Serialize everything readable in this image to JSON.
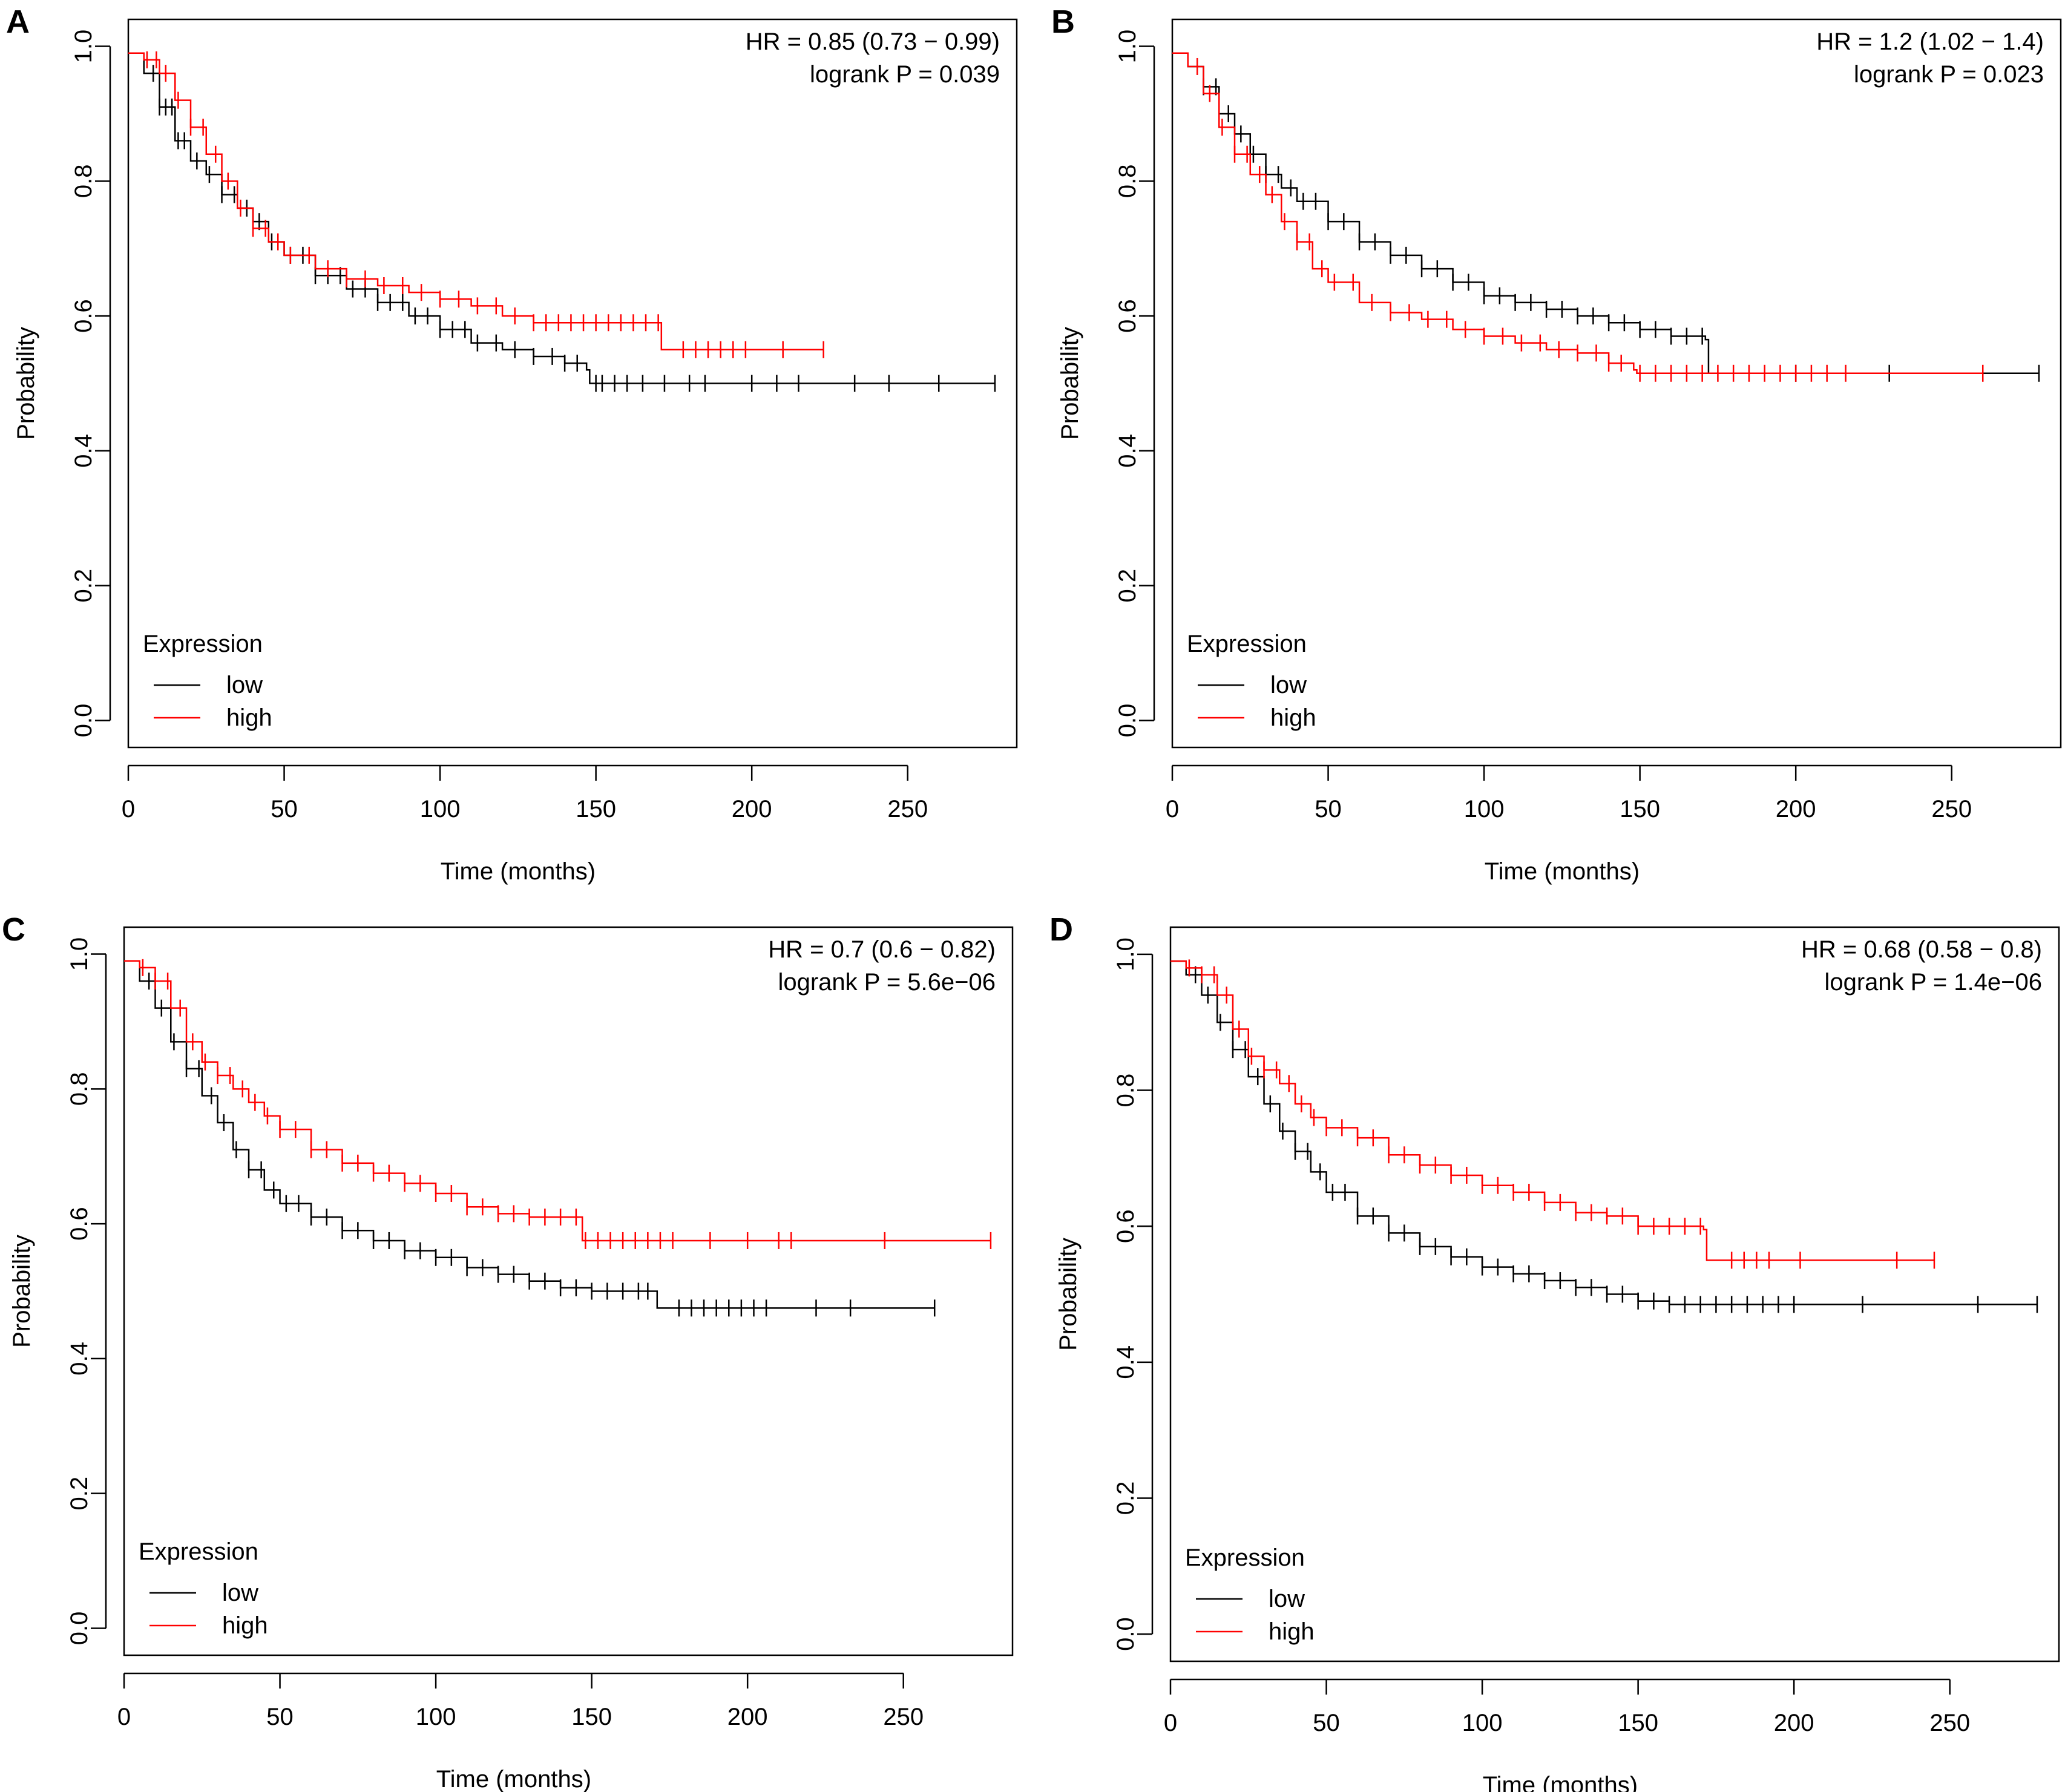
{
  "figure": {
    "colors": {
      "low": "#000000",
      "high": "#ff0000",
      "axis": "#000000"
    }
  },
  "chart_data": [
    {
      "panel": "A",
      "type": "line",
      "subtype": "kaplan-meier",
      "xlabel": "Time (months)",
      "ylabel": "Probability",
      "xlim": [
        0,
        285
      ],
      "ylim": [
        -0.04,
        1.04
      ],
      "xticks": [
        "0",
        "50",
        "100",
        "150",
        "200",
        "250"
      ],
      "yticks": [
        "0.0",
        "0.2",
        "0.4",
        "0.6",
        "0.8",
        "1.0"
      ],
      "annotation": [
        "HR = 0.85 (0.73 − 0.99)",
        "logrank P = 0.039"
      ],
      "legend": {
        "title": "Expression",
        "position": "bottom-left",
        "entries": [
          "low",
          "high"
        ]
      },
      "series": [
        {
          "name": "low",
          "color": "#000000",
          "x": [
            0,
            5,
            10,
            15,
            20,
            25,
            30,
            35,
            40,
            45,
            50,
            60,
            70,
            80,
            90,
            100,
            110,
            120,
            130,
            140,
            147,
            148,
            278
          ],
          "y": [
            0.99,
            0.96,
            0.91,
            0.86,
            0.83,
            0.81,
            0.78,
            0.76,
            0.74,
            0.71,
            0.69,
            0.66,
            0.64,
            0.62,
            0.6,
            0.58,
            0.56,
            0.55,
            0.54,
            0.53,
            0.52,
            0.5,
            0.5
          ],
          "censor": [
            8,
            10,
            12,
            14,
            16,
            18,
            22,
            26,
            30,
            34,
            38,
            42,
            46,
            52,
            56,
            60,
            64,
            68,
            72,
            76,
            80,
            84,
            88,
            92,
            96,
            100,
            104,
            108,
            112,
            118,
            124,
            130,
            136,
            140,
            144,
            150,
            152,
            156,
            160,
            165,
            172,
            180,
            185,
            200,
            208,
            215,
            233,
            244,
            260,
            278
          ]
        },
        {
          "name": "high",
          "color": "#ff0000",
          "x": [
            0,
            5,
            10,
            15,
            20,
            25,
            30,
            35,
            40,
            45,
            50,
            60,
            70,
            80,
            90,
            100,
            110,
            120,
            130,
            150,
            170,
            171,
            223
          ],
          "y": [
            0.99,
            0.98,
            0.96,
            0.92,
            0.88,
            0.84,
            0.8,
            0.76,
            0.73,
            0.71,
            0.69,
            0.67,
            0.655,
            0.645,
            0.635,
            0.625,
            0.615,
            0.6,
            0.59,
            0.59,
            0.59,
            0.55,
            0.55
          ],
          "censor": [
            6,
            9,
            12,
            16,
            20,
            24,
            28,
            32,
            36,
            40,
            44,
            48,
            52,
            58,
            64,
            70,
            76,
            82,
            88,
            94,
            100,
            106,
            112,
            118,
            124,
            130,
            134,
            138,
            142,
            146,
            150,
            154,
            158,
            162,
            166,
            170,
            178,
            182,
            186,
            190,
            194,
            198,
            210,
            223
          ]
        }
      ]
    },
    {
      "panel": "B",
      "type": "line",
      "subtype": "kaplan-meier",
      "xlabel": "Time (months)",
      "ylabel": "Probability",
      "xlim": [
        0,
        285
      ],
      "ylim": [
        -0.04,
        1.04
      ],
      "xticks": [
        "0",
        "50",
        "100",
        "150",
        "200",
        "250"
      ],
      "yticks": [
        "0.0",
        "0.2",
        "0.4",
        "0.6",
        "0.8",
        "1.0"
      ],
      "annotation": [
        "HR = 1.2 (1.02 − 1.4)",
        "logrank P = 0.023"
      ],
      "legend": {
        "title": "Expression",
        "position": "bottom-left",
        "entries": [
          "low",
          "high"
        ]
      },
      "series": [
        {
          "name": "low",
          "color": "#000000",
          "x": [
            0,
            5,
            10,
            15,
            20,
            25,
            30,
            35,
            40,
            50,
            60,
            70,
            80,
            90,
            100,
            110,
            120,
            130,
            140,
            150,
            160,
            171,
            172,
            278
          ],
          "y": [
            0.99,
            0.97,
            0.94,
            0.9,
            0.87,
            0.84,
            0.81,
            0.79,
            0.77,
            0.74,
            0.71,
            0.69,
            0.67,
            0.65,
            0.63,
            0.62,
            0.61,
            0.6,
            0.59,
            0.58,
            0.57,
            0.565,
            0.515,
            0.515
          ],
          "censor": [
            10,
            14,
            18,
            22,
            26,
            30,
            34,
            38,
            42,
            46,
            50,
            55,
            60,
            65,
            70,
            75,
            80,
            85,
            90,
            95,
            100,
            105,
            110,
            115,
            120,
            125,
            130,
            135,
            140,
            145,
            150,
            155,
            160,
            165,
            170,
            200,
            230,
            278
          ]
        },
        {
          "name": "high",
          "color": "#ff0000",
          "x": [
            0,
            5,
            10,
            15,
            20,
            25,
            30,
            35,
            40,
            45,
            50,
            60,
            70,
            80,
            90,
            100,
            110,
            120,
            130,
            140,
            148,
            149,
            260
          ],
          "y": [
            0.99,
            0.97,
            0.93,
            0.88,
            0.84,
            0.81,
            0.78,
            0.74,
            0.71,
            0.67,
            0.65,
            0.62,
            0.605,
            0.595,
            0.58,
            0.57,
            0.56,
            0.55,
            0.545,
            0.53,
            0.52,
            0.515,
            0.515
          ],
          "censor": [
            8,
            12,
            16,
            20,
            24,
            28,
            32,
            36,
            40,
            44,
            48,
            52,
            58,
            64,
            70,
            76,
            82,
            88,
            94,
            100,
            106,
            112,
            118,
            124,
            130,
            136,
            140,
            144,
            150,
            155,
            160,
            165,
            170,
            175,
            180,
            185,
            190,
            195,
            200,
            205,
            210,
            216,
            260
          ]
        }
      ]
    },
    {
      "panel": "C",
      "type": "line",
      "subtype": "kaplan-meier",
      "xlabel": "Time (months)",
      "ylabel": "Probability",
      "xlim": [
        0,
        285
      ],
      "ylim": [
        -0.04,
        1.04
      ],
      "xticks": [
        "0",
        "50",
        "100",
        "150",
        "200",
        "250"
      ],
      "yticks": [
        "0.0",
        "0.2",
        "0.4",
        "0.6",
        "0.8",
        "1.0"
      ],
      "annotation": [
        "HR = 0.7 (0.6 − 0.82)",
        "logrank P = 5.6e−06"
      ],
      "legend": {
        "title": "Expression",
        "position": "bottom-left",
        "entries": [
          "low",
          "high"
        ]
      },
      "series": [
        {
          "name": "low",
          "color": "#000000",
          "x": [
            0,
            5,
            10,
            15,
            20,
            25,
            30,
            35,
            40,
            45,
            50,
            60,
            70,
            80,
            90,
            100,
            110,
            120,
            130,
            140,
            150,
            170,
            171,
            260
          ],
          "y": [
            0.99,
            0.96,
            0.92,
            0.87,
            0.83,
            0.79,
            0.75,
            0.71,
            0.68,
            0.65,
            0.63,
            0.61,
            0.59,
            0.575,
            0.56,
            0.55,
            0.535,
            0.525,
            0.515,
            0.505,
            0.5,
            0.5,
            0.475,
            0.475
          ],
          "censor": [
            8,
            12,
            16,
            20,
            24,
            28,
            32,
            36,
            40,
            44,
            48,
            52,
            56,
            60,
            65,
            70,
            75,
            80,
            85,
            90,
            95,
            100,
            105,
            110,
            115,
            120,
            125,
            130,
            135,
            140,
            145,
            150,
            155,
            160,
            165,
            168,
            178,
            182,
            186,
            190,
            194,
            198,
            202,
            206,
            222,
            233,
            260
          ]
        },
        {
          "name": "high",
          "color": "#ff0000",
          "x": [
            0,
            5,
            10,
            15,
            20,
            25,
            30,
            35,
            40,
            45,
            50,
            60,
            70,
            80,
            90,
            100,
            110,
            120,
            130,
            140,
            146,
            147,
            278
          ],
          "y": [
            0.99,
            0.98,
            0.96,
            0.92,
            0.87,
            0.84,
            0.82,
            0.8,
            0.78,
            0.76,
            0.74,
            0.71,
            0.69,
            0.675,
            0.66,
            0.645,
            0.625,
            0.615,
            0.61,
            0.61,
            0.61,
            0.575,
            0.575
          ],
          "censor": [
            6,
            10,
            14,
            18,
            22,
            26,
            30,
            34,
            38,
            42,
            46,
            50,
            55,
            60,
            65,
            70,
            75,
            80,
            85,
            90,
            95,
            100,
            105,
            110,
            115,
            120,
            125,
            130,
            135,
            140,
            145,
            148,
            152,
            156,
            160,
            164,
            168,
            172,
            176,
            188,
            200,
            210,
            214,
            244,
            278
          ]
        }
      ]
    },
    {
      "panel": "D",
      "type": "line",
      "subtype": "kaplan-meier",
      "xlabel": "Time (months)",
      "ylabel": "Probability",
      "xlim": [
        0,
        285
      ],
      "ylim": [
        -0.04,
        1.04
      ],
      "xticks": [
        "0",
        "50",
        "100",
        "150",
        "200",
        "250"
      ],
      "yticks": [
        "0.0",
        "0.2",
        "0.4",
        "0.6",
        "0.8",
        "1.0"
      ],
      "annotation": [
        "HR = 0.68 (0.58 − 0.8)",
        "logrank P = 1.4e−06"
      ],
      "legend": {
        "title": "Expression",
        "position": "bottom-left",
        "entries": [
          "low",
          "high"
        ]
      },
      "series": [
        {
          "name": "low",
          "color": "#000000",
          "x": [
            0,
            5,
            10,
            15,
            20,
            25,
            30,
            35,
            40,
            45,
            50,
            60,
            70,
            80,
            90,
            100,
            110,
            120,
            130,
            140,
            150,
            160,
            278
          ],
          "y": [
            0.99,
            0.97,
            0.94,
            0.9,
            0.86,
            0.82,
            0.78,
            0.74,
            0.71,
            0.68,
            0.65,
            0.615,
            0.59,
            0.57,
            0.555,
            0.54,
            0.53,
            0.52,
            0.51,
            0.5,
            0.49,
            0.485,
            0.485
          ],
          "censor": [
            8,
            12,
            16,
            20,
            24,
            28,
            32,
            36,
            40,
            44,
            48,
            52,
            56,
            60,
            65,
            70,
            75,
            80,
            85,
            90,
            95,
            100,
            105,
            110,
            115,
            120,
            125,
            130,
            135,
            140,
            145,
            150,
            155,
            160,
            165,
            170,
            175,
            180,
            185,
            190,
            195,
            200,
            222,
            259,
            278
          ]
        },
        {
          "name": "high",
          "color": "#ff0000",
          "x": [
            0,
            5,
            10,
            15,
            20,
            25,
            30,
            35,
            40,
            45,
            50,
            60,
            70,
            80,
            90,
            100,
            110,
            120,
            130,
            140,
            150,
            171,
            172,
            245
          ],
          "y": [
            0.99,
            0.98,
            0.97,
            0.94,
            0.89,
            0.85,
            0.83,
            0.81,
            0.78,
            0.76,
            0.745,
            0.73,
            0.705,
            0.69,
            0.675,
            0.66,
            0.65,
            0.635,
            0.62,
            0.615,
            0.6,
            0.595,
            0.55,
            0.55
          ],
          "censor": [
            6,
            10,
            14,
            18,
            22,
            26,
            30,
            34,
            38,
            42,
            46,
            50,
            55,
            60,
            65,
            70,
            75,
            80,
            85,
            90,
            95,
            100,
            105,
            110,
            115,
            120,
            125,
            130,
            135,
            140,
            145,
            150,
            155,
            160,
            165,
            170,
            180,
            184,
            188,
            192,
            202,
            233,
            245
          ]
        }
      ]
    }
  ]
}
